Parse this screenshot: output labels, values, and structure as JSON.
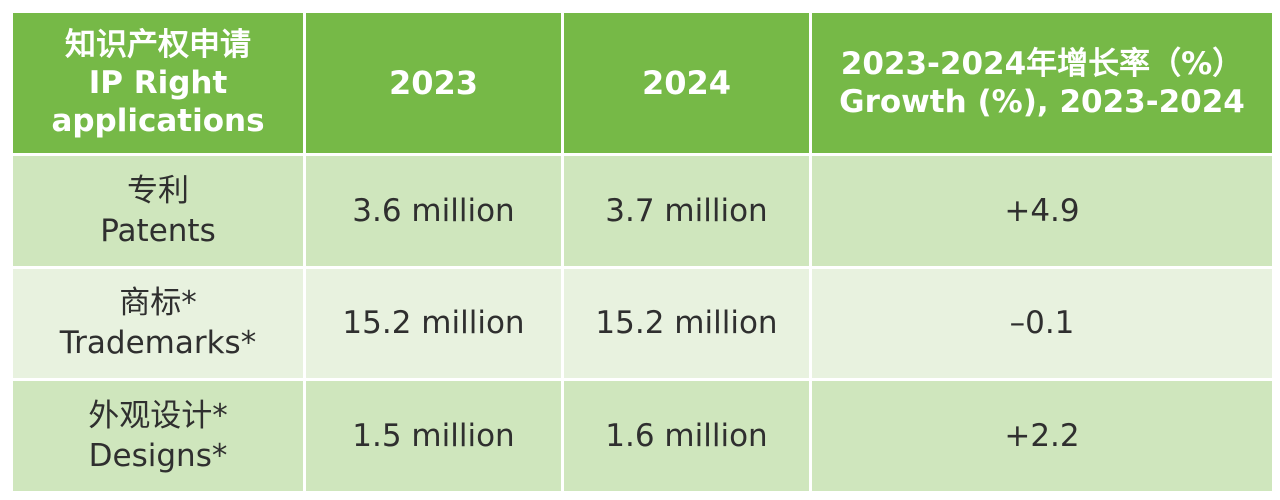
{
  "header": {
    "col1_line1": "知识产权申请",
    "col1_line2": "IP Right",
    "col1_line3": "applications",
    "col2": "2023",
    "col3": "2024",
    "col4_line1": "2023-2024年增长率（%）",
    "col4_line2": "Growth (%), 2023-2024"
  },
  "rows": [
    {
      "label_cn": "专利",
      "label_en": "Patents",
      "y2023": "3.6 million",
      "y2024": "3.7 million",
      "growth": "+4.9"
    },
    {
      "label_cn": "商标*",
      "label_en": "Trademarks*",
      "y2023": "15.2 million",
      "y2024": "15.2 million",
      "growth": "–0.1"
    },
    {
      "label_cn": "外观设计*",
      "label_en": "Designs*",
      "y2023": "1.5 million",
      "y2024": "1.6 million",
      "growth": "+2.2"
    }
  ],
  "colors": {
    "header_bg": "#76b947",
    "row_dark": "#cfe6bd",
    "row_light": "#e8f2df"
  }
}
